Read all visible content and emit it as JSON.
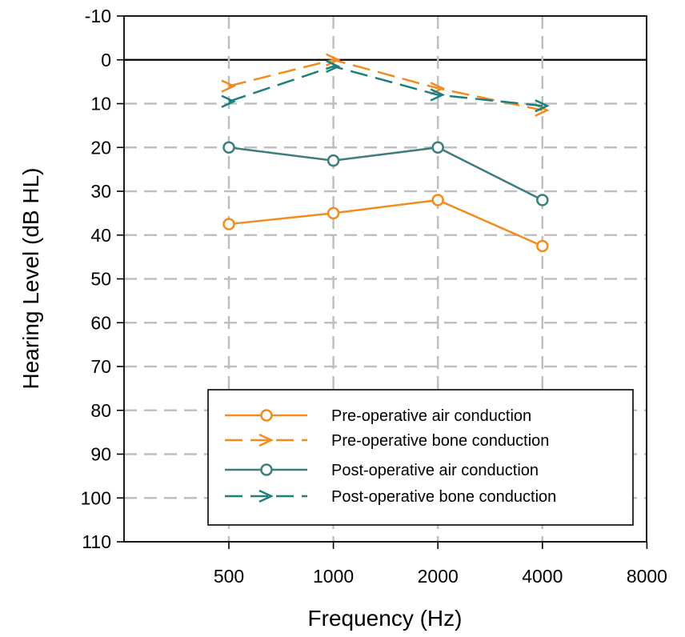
{
  "chart_data": {
    "type": "line",
    "xlabel": "Frequency (Hz)",
    "ylabel": "Hearing Level (dB HL)",
    "x_ticks": [
      "500",
      "1000",
      "2000",
      "4000",
      "8000"
    ],
    "x_scale": "log2",
    "y_ticks": [
      "-10",
      "0",
      "10",
      "20",
      "30",
      "40",
      "50",
      "60",
      "70",
      "80",
      "90",
      "100",
      "110"
    ],
    "ylim": [
      -10,
      110
    ],
    "y_inverted": true,
    "grid": true,
    "legend_position": "bottom-right",
    "series": [
      {
        "name": "Pre-operative air conduction",
        "color": "#F28C1E",
        "line_style": "solid",
        "marker": "circle",
        "x": [
          500,
          1000,
          2000,
          4000
        ],
        "y": [
          37.5,
          35,
          32,
          42.5
        ]
      },
      {
        "name": "Pre-operative bone conduction",
        "color": "#F28C1E",
        "line_style": "dashed",
        "marker": "arrow",
        "x": [
          500,
          1000,
          2000,
          4000
        ],
        "y": [
          6,
          0,
          6.5,
          11.5
        ]
      },
      {
        "name": "Post-operative air conduction",
        "color": "#3E7E7E",
        "line_style": "solid",
        "marker": "circle",
        "x": [
          500,
          1000,
          2000,
          4000
        ],
        "y": [
          20,
          23,
          20,
          32
        ]
      },
      {
        "name": "Post-operative bone conduction",
        "color": "#1E7E7E",
        "line_style": "dashed",
        "marker": "arrow",
        "x": [
          500,
          1000,
          2000,
          4000
        ],
        "y": [
          9.5,
          1.5,
          8,
          10.5
        ]
      }
    ]
  }
}
